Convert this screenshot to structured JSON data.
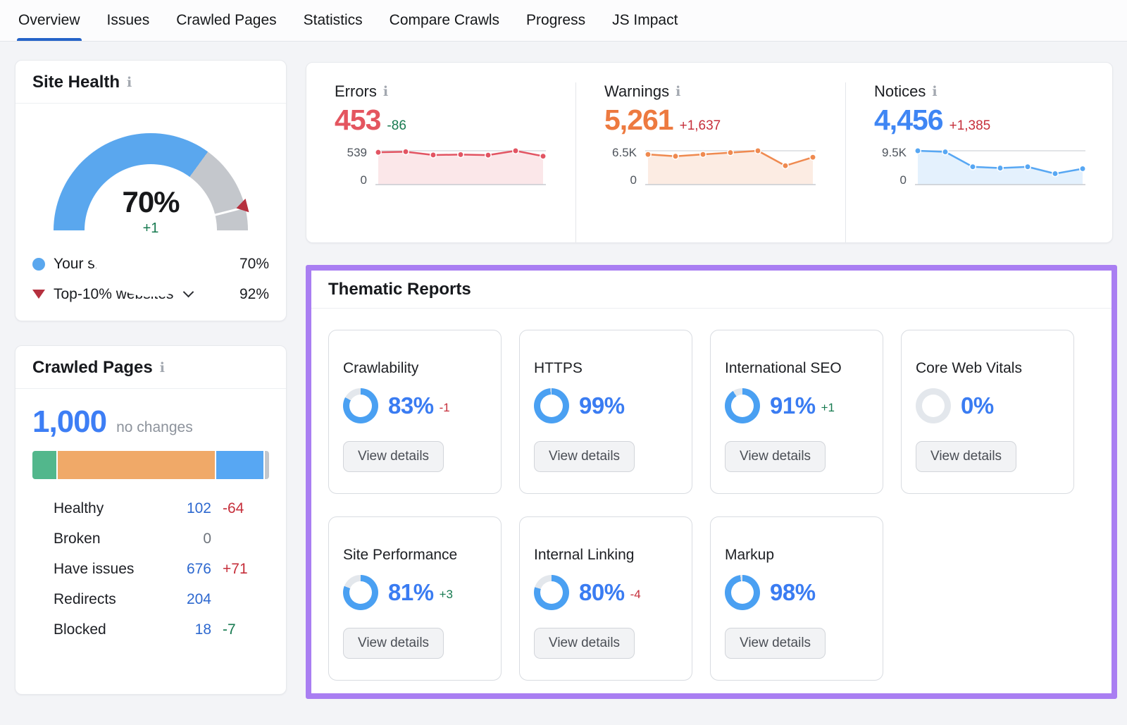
{
  "page": {
    "background": "#f3f4f7",
    "highlight_color": "#a97ef2"
  },
  "nav": {
    "tabs": [
      {
        "label": "Overview",
        "active": true
      },
      {
        "label": "Issues",
        "active": false
      },
      {
        "label": "Crawled Pages",
        "active": false
      },
      {
        "label": "Statistics",
        "active": false
      },
      {
        "label": "Compare Crawls",
        "active": false
      },
      {
        "label": "Progress",
        "active": false
      },
      {
        "label": "JS Impact",
        "active": false
      }
    ],
    "active_underline_color": "#2563c8"
  },
  "site_health": {
    "title": "Site Health",
    "info_icon": "i",
    "score": "70%",
    "delta": "+1",
    "gauge": {
      "your_site_pct": 70,
      "benchmark_pct": 92,
      "arc_color": "#5aa7ee",
      "track_color": "#c4c7cc",
      "marker_color": "#b5303e"
    },
    "legend": [
      {
        "icon": "blue-dot",
        "icon_color": "#5aa7ee",
        "label": "Your site",
        "value": "70%",
        "has_chevron": false
      },
      {
        "icon": "red-triangle-down",
        "icon_color": "#b5303e",
        "label": "Top-10% websites",
        "value": "92%",
        "has_chevron": true
      }
    ]
  },
  "crawled_pages": {
    "title": "Crawled Pages",
    "info_icon": "i",
    "total": "1,000",
    "total_note": "no changes",
    "segments": [
      {
        "name": "Healthy",
        "pct": 10.2,
        "color": "#52b78c"
      },
      {
        "name": "Have issues",
        "pct": 67.6,
        "color": "#f0a968"
      },
      {
        "name": "Redirects",
        "pct": 20.4,
        "color": "#57a7f3"
      },
      {
        "name": "Blocked",
        "pct": 1.8,
        "color": "#c2c6cc"
      }
    ],
    "legend": [
      {
        "label": "Healthy",
        "dot": "#52b78c",
        "value": "102",
        "value_color": "#2d68cf",
        "delta": "-64",
        "delta_color": "#c62f3b"
      },
      {
        "label": "Broken",
        "dot": "#e4545f",
        "value": "0",
        "value_color": "#6e747c",
        "delta": "",
        "delta_color": ""
      },
      {
        "label": "Have issues",
        "dot": "#f0a968",
        "value": "676",
        "value_color": "#2d68cf",
        "delta": "+71",
        "delta_color": "#c62f3b"
      },
      {
        "label": "Redirects",
        "dot": "#57a7f3",
        "value": "204",
        "value_color": "#2d68cf",
        "delta": "",
        "delta_color": ""
      },
      {
        "label": "Blocked",
        "dot": "#c2c6cc",
        "value": "18",
        "value_color": "#2d68cf",
        "delta": "-7",
        "delta_color": "#177a50"
      }
    ]
  },
  "issues_summary": {
    "columns": [
      {
        "label": "Errors",
        "info_icon": "i",
        "value": "453",
        "value_color": "#e4555f",
        "delta": "-86",
        "delta_color": "#177a50",
        "ymax_label": "539",
        "ymin_label": "0",
        "ymax": 539,
        "values": [
          515,
          524,
          472,
          478,
          470,
          539,
          453
        ],
        "line_color": "#e25563",
        "fill_color": "rgba(226,85,99,0.14)"
      },
      {
        "label": "Warnings",
        "info_icon": "i",
        "value": "5,261",
        "value_color": "#ed7a40",
        "delta": "+1,637",
        "delta_color": "#c62f3b",
        "ymax_label": "6.5K",
        "ymin_label": "0",
        "ymax": 6500,
        "values": [
          5800,
          5450,
          5800,
          6150,
          6500,
          3624,
          5261
        ],
        "line_color": "#ef8a50",
        "fill_color": "rgba(239,138,80,0.16)"
      },
      {
        "label": "Notices",
        "info_icon": "i",
        "value": "4,456",
        "value_color": "#3f86f4",
        "delta": "+1,385",
        "delta_color": "#c62f3b",
        "ymax_label": "9.5K",
        "ymin_label": "0",
        "ymax": 9500,
        "values": [
          9500,
          9200,
          5000,
          4650,
          5000,
          3071,
          4456
        ],
        "line_color": "#57a7f3",
        "fill_color": "rgba(87,167,243,0.16)"
      }
    ]
  },
  "thematic": {
    "title": "Thematic Reports",
    "button_label": "View details",
    "donut_color": "#4aa0f2",
    "donut_track": "#e3e7ec",
    "reports": [
      {
        "label": "Crawlability",
        "pct": 83,
        "pct_label": "83%",
        "delta": "-1",
        "delta_color": "#c62f3b"
      },
      {
        "label": "HTTPS",
        "pct": 99,
        "pct_label": "99%",
        "delta": "",
        "delta_color": ""
      },
      {
        "label": "International SEO",
        "pct": 91,
        "pct_label": "91%",
        "delta": "+1",
        "delta_color": "#177a50"
      },
      {
        "label": "Core Web Vitals",
        "pct": 0,
        "pct_label": "0%",
        "delta": "",
        "delta_color": ""
      },
      {
        "label": "Site Performance",
        "pct": 81,
        "pct_label": "81%",
        "delta": "+3",
        "delta_color": "#177a50"
      },
      {
        "label": "Internal Linking",
        "pct": 80,
        "pct_label": "80%",
        "delta": "-4",
        "delta_color": "#c62f3b"
      },
      {
        "label": "Markup",
        "pct": 98,
        "pct_label": "98%",
        "delta": "",
        "delta_color": ""
      }
    ]
  },
  "chart_data": [
    {
      "type": "gauge",
      "title": "Site Health",
      "value": 70,
      "delta": 1,
      "benchmark": 92,
      "range": [
        0,
        100
      ]
    },
    {
      "type": "bar",
      "title": "Crawled Pages breakdown",
      "categories": [
        "Healthy",
        "Broken",
        "Have issues",
        "Redirects",
        "Blocked"
      ],
      "values": [
        102,
        0,
        676,
        204,
        18
      ],
      "total": 1000
    },
    {
      "type": "line",
      "title": "Errors",
      "x": [
        1,
        2,
        3,
        4,
        5,
        6,
        7
      ],
      "values": [
        515,
        524,
        472,
        478,
        470,
        539,
        453
      ],
      "ylim": [
        0,
        539
      ],
      "current": 453,
      "change": -86
    },
    {
      "type": "line",
      "title": "Warnings",
      "x": [
        1,
        2,
        3,
        4,
        5,
        6,
        7
      ],
      "values": [
        5800,
        5450,
        5800,
        6150,
        6500,
        3624,
        5261
      ],
      "ylim": [
        0,
        6500
      ],
      "current": 5261,
      "change": 1637
    },
    {
      "type": "line",
      "title": "Notices",
      "x": [
        1,
        2,
        3,
        4,
        5,
        6,
        7
      ],
      "values": [
        9500,
        9200,
        5000,
        4650,
        5000,
        3071,
        4456
      ],
      "ylim": [
        0,
        9500
      ],
      "current": 4456,
      "change": 1385
    },
    {
      "type": "pie",
      "title": "Thematic Reports scores (%)",
      "categories": [
        "Crawlability",
        "HTTPS",
        "International SEO",
        "Core Web Vitals",
        "Site Performance",
        "Internal Linking",
        "Markup"
      ],
      "values": [
        83,
        99,
        91,
        0,
        81,
        80,
        98
      ]
    }
  ]
}
